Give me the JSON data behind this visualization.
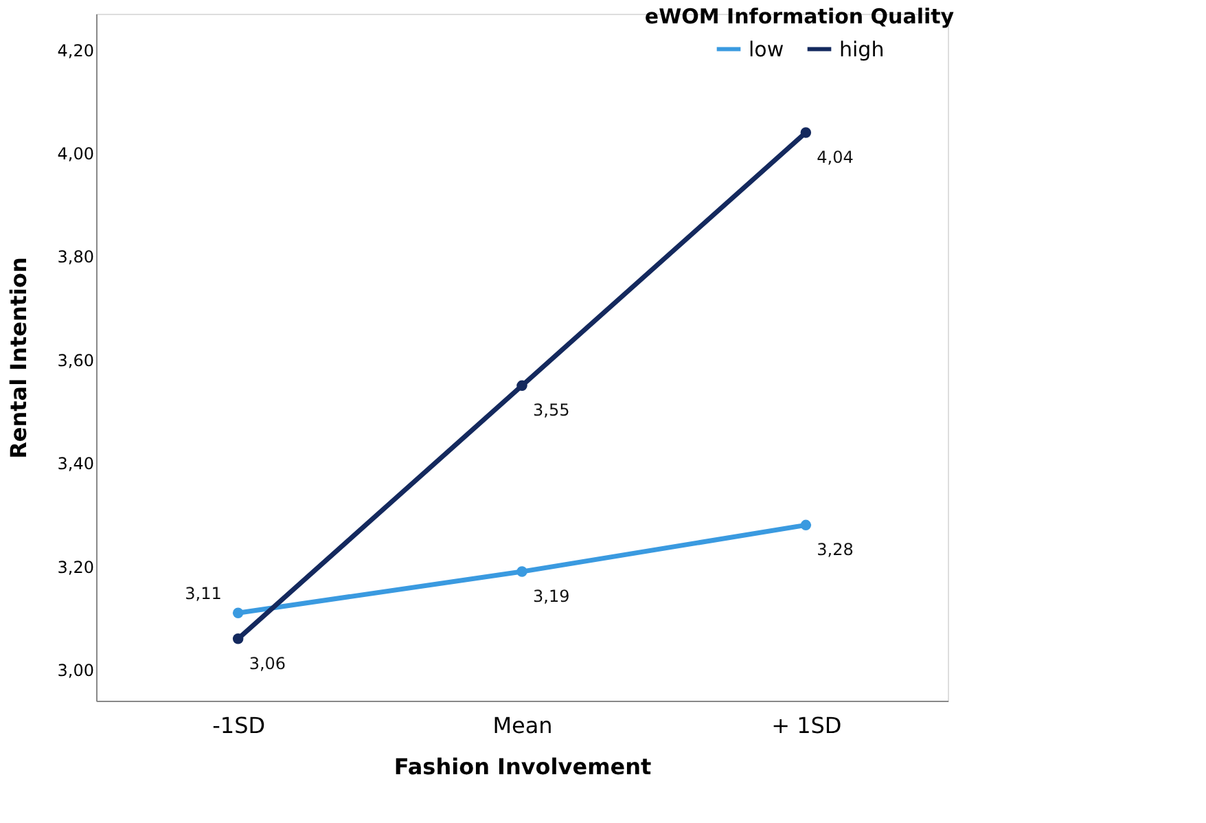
{
  "chart_data": {
    "type": "line",
    "xlabel": "Fashion Involvement",
    "ylabel": "Rental Intention",
    "legend_title": "eWOM Information Quality",
    "categories": [
      "-1SD",
      "Mean",
      "+ 1SD"
    ],
    "series": [
      {
        "name": "low",
        "color": "#3a9ae0",
        "values": [
          3.11,
          3.19,
          3.28
        ],
        "value_labels": [
          "3,11",
          "3,19",
          "3,28"
        ]
      },
      {
        "name": "high",
        "color": "#14295e",
        "values": [
          3.06,
          3.55,
          4.04
        ],
        "value_labels": [
          "3,06",
          "3,55",
          "4,04"
        ]
      }
    ],
    "ylim": [
      2.94,
      4.27
    ],
    "yticks": [
      {
        "value": 3.0,
        "label": "3,00"
      },
      {
        "value": 3.2,
        "label": "3,20"
      },
      {
        "value": 3.4,
        "label": "3,40"
      },
      {
        "value": 3.6,
        "label": "3,60"
      },
      {
        "value": 3.8,
        "label": "3,80"
      },
      {
        "value": 4.0,
        "label": "4,00"
      },
      {
        "value": 4.2,
        "label": "4,20"
      }
    ],
    "marker": "circle",
    "line_style": "solid",
    "grid": false,
    "legend": "top right"
  }
}
